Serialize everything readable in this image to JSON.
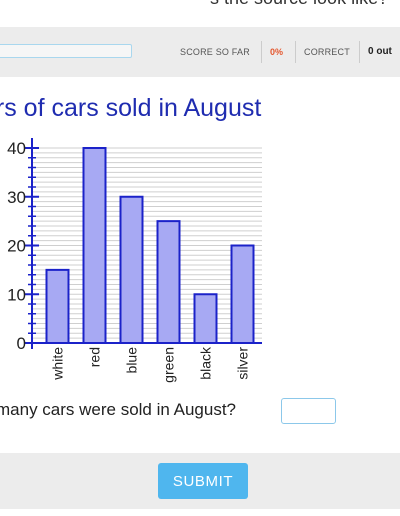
{
  "caption": {
    "text": "s the source look like?"
  },
  "header": {
    "progress_percent": 0,
    "score_label": "SCORE SO FAR",
    "score_value": "0%",
    "correct_label": "CORRECT",
    "correct_value": "0 out"
  },
  "colors": {
    "title": "#1f2cb0",
    "bar_fill": "#a7a9f3",
    "bar_stroke": "#1b22c9",
    "axis": "#1b22c9",
    "score_value": "#e4572e",
    "submit": "#4fb6ee",
    "input_border": "#8cc8ea"
  },
  "chart_data": {
    "type": "bar",
    "title": "ors of cars sold in August",
    "categories": [
      "white",
      "red",
      "blue",
      "green",
      "black",
      "silver"
    ],
    "values": [
      15,
      40,
      30,
      25,
      10,
      20
    ],
    "ylim": [
      0,
      40
    ],
    "yticks": [
      0,
      10,
      20,
      30,
      40
    ],
    "minor_tick_step": 2,
    "grid": true,
    "xlabel": "",
    "ylabel": ""
  },
  "question": {
    "text": "many cars were sold in August?",
    "answer_value": "",
    "answer_placeholder": ""
  },
  "footer": {
    "submit_label": "SUBMIT"
  }
}
